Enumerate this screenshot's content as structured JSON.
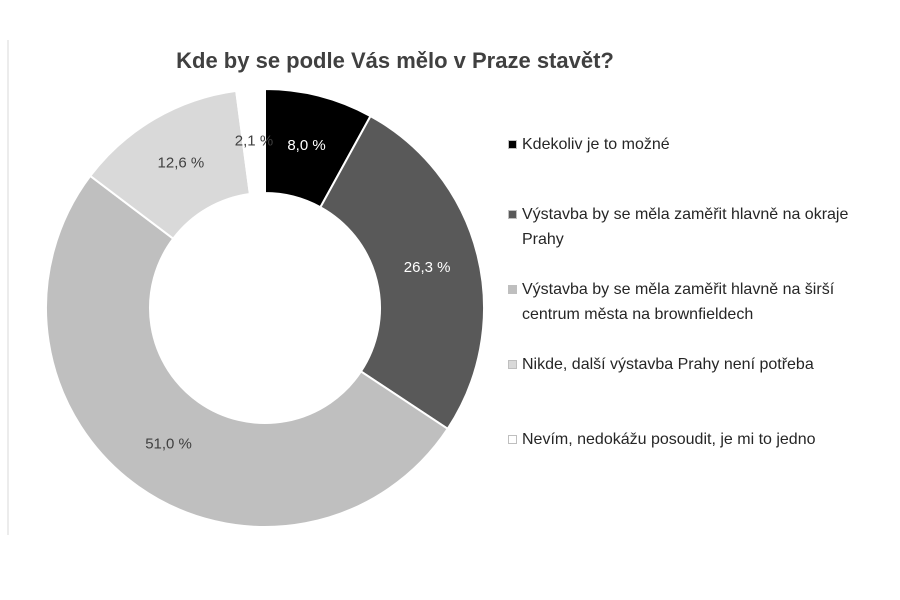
{
  "chart_data": {
    "type": "donut",
    "title": "Kde by se podle Vás mělo v Praze stavět?",
    "categories": [
      "Kdekoliv je to možné",
      "Výstavba by se měla zaměřit hlavně na okraje Prahy",
      "Výstavba by se měla zaměřit hlavně na širší centrum města na brownfieldech",
      "Nikde, další výstavba Prahy není potřeba",
      "Nevím, nedokážu posoudit, je mi to jedno"
    ],
    "values": [
      8.0,
      26.3,
      51.0,
      12.6,
      2.1
    ],
    "value_labels": [
      "8,0 %",
      "26,3 %",
      "51,0 %",
      "12,6 %",
      "2,1 %"
    ],
    "colors": [
      "#000000",
      "#595959",
      "#bfbfbf",
      "#d9d9d9",
      "#ffffff"
    ],
    "legend": "right"
  }
}
